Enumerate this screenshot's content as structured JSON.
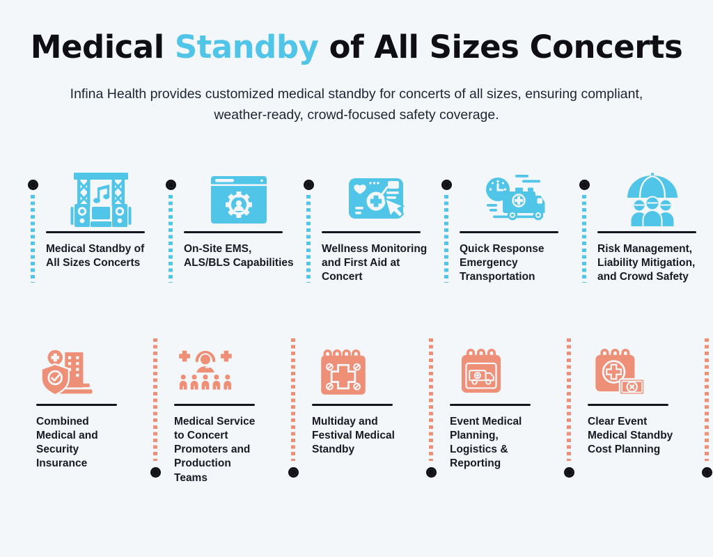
{
  "header": {
    "title_pre": "Medical ",
    "title_highlight": "Standby",
    "title_post": " of All Sizes Concerts",
    "subtitle": "Infina Health provides customized medical standby for concerts of all sizes, ensuring compliant, weather-ready, crowd-focused safety coverage."
  },
  "colors": {
    "accent_blue": "#50c5e8",
    "accent_salmon": "#ee9078",
    "background": "#f3f7fa",
    "text_dark": "#191923",
    "marker_black": "#101016"
  },
  "rows": [
    {
      "accent": "#50c5e8",
      "marker_position": "left",
      "items": [
        {
          "label": "Medical Standby of All Sizes Concerts",
          "icon": "concert-stage"
        },
        {
          "label": "On-Site EMS, ALS/BLS Capabilities",
          "icon": "browser-ems-settings"
        },
        {
          "label": "Wellness Monitoring and First Aid at Concert",
          "icon": "wellness-monitoring-screen"
        },
        {
          "label": "Quick Response Emergency Transportation",
          "icon": "ambulance-clock"
        },
        {
          "label": "Risk Management, Liability Mitigation, and Crowd Safety",
          "icon": "umbrella-crowd"
        }
      ]
    },
    {
      "accent": "#ee9078",
      "marker_position": "right",
      "items": [
        {
          "label": "Combined Medical and Security Insurance",
          "icon": "shield-building-insurance"
        },
        {
          "label": "Medical Service to Concert Promoters and Production Teams",
          "icon": "medical-team-crowd"
        },
        {
          "label": "Multiday and Festival Medical Standby",
          "icon": "calendar-medical-cross"
        },
        {
          "label": "Event Medical Planning, Logistics & Reporting",
          "icon": "calendar-ambulance"
        },
        {
          "label": "Clear Event Medical Standby Cost Planning",
          "icon": "calendar-cost"
        }
      ]
    }
  ]
}
